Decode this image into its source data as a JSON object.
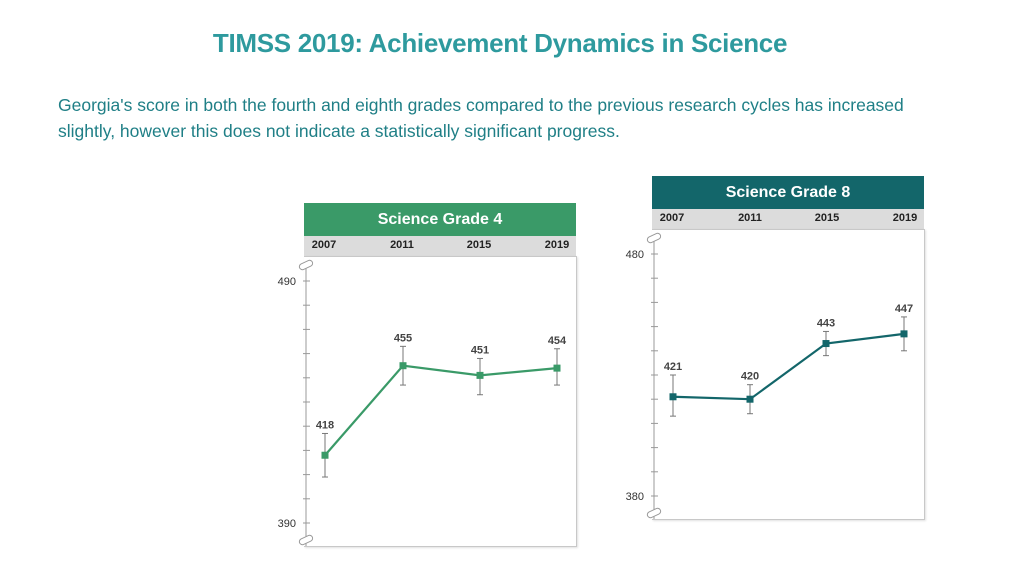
{
  "title": "TIMSS 2019: Achievement Dynamics in Science",
  "description": "Georgia's score in both the fourth and eighth grades compared to the previous research cycles has increased slightly, however this does not indicate a statistically significant progress.",
  "colors": {
    "title": "#2e9a9e",
    "grade4": "#3a9a68",
    "grade8": "#13666a"
  },
  "chart_data": [
    {
      "type": "line",
      "title": "Science Grade 4",
      "x": [
        "2007",
        "2011",
        "2015",
        "2019"
      ],
      "values": [
        418,
        455,
        451,
        454
      ],
      "error_low": [
        409,
        447,
        443,
        447
      ],
      "error_high": [
        427,
        463,
        458,
        462
      ],
      "ylim": [
        390,
        490
      ],
      "ytick_labels": [
        "490",
        "390"
      ],
      "grid": false
    },
    {
      "type": "line",
      "title": "Science Grade 8",
      "x": [
        "2007",
        "2011",
        "2015",
        "2019"
      ],
      "values": [
        421,
        420,
        443,
        447
      ],
      "error_low": [
        413,
        414,
        438,
        440
      ],
      "error_high": [
        430,
        426,
        448,
        454
      ],
      "ylim": [
        380,
        480
      ],
      "ytick_labels": [
        "480",
        "380"
      ],
      "grid": false
    }
  ]
}
